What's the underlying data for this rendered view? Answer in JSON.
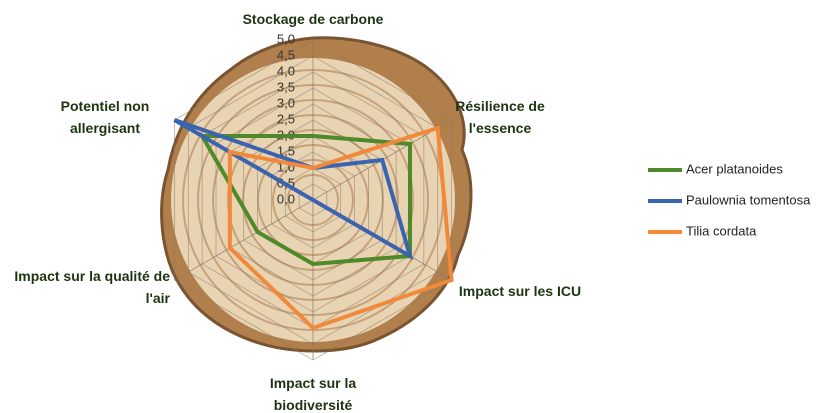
{
  "chart_data": {
    "type": "radar",
    "categories": [
      "Stockage de carbone",
      "Résilience de l'essence",
      "Impact sur les ICU",
      "Impact sur la biodiversité",
      "Impact sur la qualité de l'air",
      "Potentiel non allergisant"
    ],
    "series": [
      {
        "name": "Acer platanoides",
        "color": "#4e8a2a",
        "values": [
          2,
          3.5,
          3.5,
          2,
          2,
          4
        ]
      },
      {
        "name": "Paulownia tomentosa",
        "color": "#3a63b0",
        "values": [
          1,
          2.5,
          3.5,
          0,
          0,
          5
        ]
      },
      {
        "name": "Tilia cordata",
        "color": "#f08a3a",
        "values": [
          1,
          4.5,
          5,
          4,
          3,
          3
        ]
      }
    ],
    "rlim": [
      0,
      5
    ],
    "rticks": [
      {
        "value": 0,
        "label": "0,0"
      },
      {
        "value": 0.5,
        "label": "0,5"
      },
      {
        "value": 1,
        "label": "1,0"
      },
      {
        "value": 1.5,
        "label": "1,5"
      },
      {
        "value": 2,
        "label": "2,0"
      },
      {
        "value": 2.5,
        "label": "2,5"
      },
      {
        "value": 3,
        "label": "3,0"
      },
      {
        "value": 3.5,
        "label": "3,5"
      },
      {
        "value": 4,
        "label": "4,0"
      },
      {
        "value": 4.5,
        "label": "4,5"
      },
      {
        "value": 5,
        "label": "5,0"
      }
    ],
    "grid": true,
    "legend": "right"
  }
}
